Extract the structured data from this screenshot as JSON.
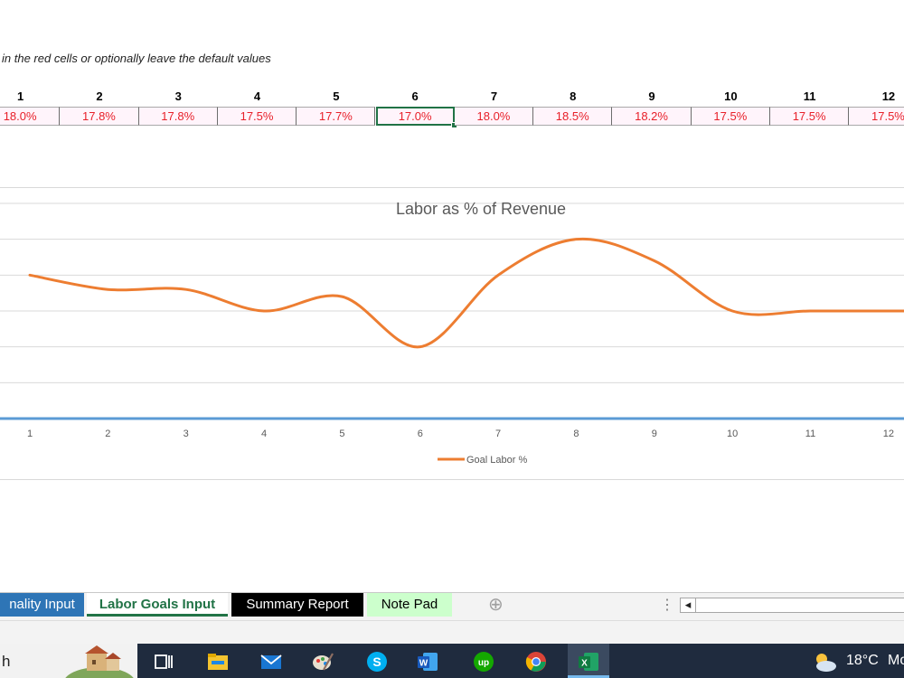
{
  "sheet": {
    "instruction": "in the red cells or optionally leave the default values",
    "months": [
      "1",
      "2",
      "3",
      "4",
      "5",
      "6",
      "7",
      "8",
      "9",
      "10",
      "11",
      "12"
    ],
    "goal_cells": [
      "18.0%",
      "17.8%",
      "17.8%",
      "17.5%",
      "17.7%",
      "17.0%",
      "18.0%",
      "18.5%",
      "18.2%",
      "17.5%",
      "17.5%",
      "17.5%"
    ],
    "selected_cell_index": 5
  },
  "chart_data": {
    "type": "line",
    "title": "Labor as % of Revenue",
    "categories": [
      "1",
      "2",
      "3",
      "4",
      "5",
      "6",
      "7",
      "8",
      "9",
      "10",
      "11",
      "12"
    ],
    "series": [
      {
        "name": "Goal Labor %",
        "values": [
          18.0,
          17.8,
          17.8,
          17.5,
          17.7,
          17.0,
          18.0,
          18.5,
          18.2,
          17.5,
          17.5,
          17.5
        ],
        "color": "#ed7d31"
      }
    ],
    "ylim": [
      16.0,
      19.0
    ],
    "grid": true,
    "legend": "bottom",
    "axis_color": "#5b9bd5"
  },
  "tabs": [
    {
      "label": "nality Input",
      "active": false,
      "bg": "#2e75b6",
      "fg": "#ffffff"
    },
    {
      "label": "Labor Goals Input",
      "active": true,
      "bg": "#ffffff",
      "fg": "#217346"
    },
    {
      "label": "Summary Report",
      "active": false,
      "bg": "#000000",
      "fg": "#ffffff"
    },
    {
      "label": "Note Pad",
      "active": false,
      "bg": "#ccffcc",
      "fg": "#000000"
    }
  ],
  "add_sheet_glyph": "⊕",
  "scroll_left_glyph": "◂",
  "tab_splitter_glyph": "⋮",
  "taskbar": {
    "search_text": "h",
    "weather_temp": "18°C",
    "weather_extra": "Mo",
    "icons": [
      "task-view-icon",
      "file-explorer-icon",
      "mail-icon",
      "paint-icon",
      "skype-icon",
      "word-icon",
      "upwork-icon",
      "chrome-icon",
      "excel-icon",
      "weather-icon"
    ]
  }
}
